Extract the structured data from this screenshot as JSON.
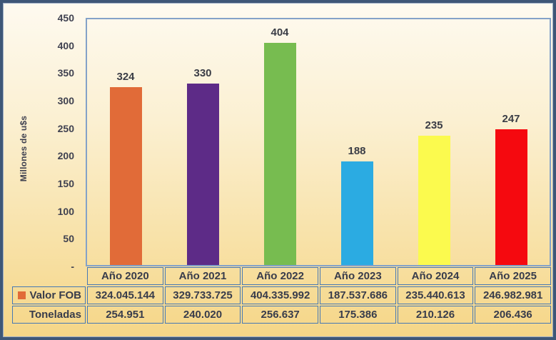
{
  "chart_data": {
    "type": "bar",
    "title": "",
    "xlabel": "",
    "ylabel": "Millones de u$s",
    "ylim": [
      0,
      450
    ],
    "grid": false,
    "legend_position": "table-left",
    "categories": [
      "Año 2020",
      "Año 2021",
      "Año 2022",
      "Año 2023",
      "Año 2024",
      "Año 2025"
    ],
    "series": [
      {
        "name": "Valor FOB",
        "values": [
          324,
          330,
          404,
          188,
          235,
          247
        ],
        "data_labels": [
          "324",
          "330",
          "404",
          "188",
          "235",
          "247"
        ]
      }
    ],
    "bar_colors": [
      "#E16B38",
      "#5D2B87",
      "#77BC50",
      "#2BABE2",
      "#FBFA4E",
      "#F5090F"
    ],
    "y_ticks": [
      {
        "value": 450,
        "label": "450"
      },
      {
        "value": 400,
        "label": "400"
      },
      {
        "value": 350,
        "label": "350"
      },
      {
        "value": 300,
        "label": "300"
      },
      {
        "value": 250,
        "label": "250"
      },
      {
        "value": 200,
        "label": "200"
      },
      {
        "value": 150,
        "label": "150"
      },
      {
        "value": 100,
        "label": "100"
      },
      {
        "value": 50,
        "label": "50"
      },
      {
        "value": 0,
        "label": "-"
      }
    ]
  },
  "table": {
    "column_headers": [
      "Año 2020",
      "Año 2021",
      "Año 2022",
      "Año 2023",
      "Año 2024",
      "Año 2025"
    ],
    "rows": [
      {
        "label": "Valor FOB",
        "swatch_color": "#E16B38",
        "values": [
          "324.045.144",
          "329.733.725",
          "404.335.992",
          "187.537.686",
          "235.440.613",
          "246.982.981"
        ]
      },
      {
        "label": "Toneladas",
        "swatch_color": null,
        "values": [
          "254.951",
          "240.020",
          "256.637",
          "175.386",
          "210.126",
          "206.436"
        ]
      }
    ]
  },
  "colors": {
    "frame_border": "#3E5777",
    "frame_inner_highlight": "#9CADC6",
    "plot_border": "#84A2C8",
    "table_border": "#4678B4",
    "text": "#383C4B",
    "background_top": "#FEFAF0",
    "background_bottom": "#F5D687"
  }
}
